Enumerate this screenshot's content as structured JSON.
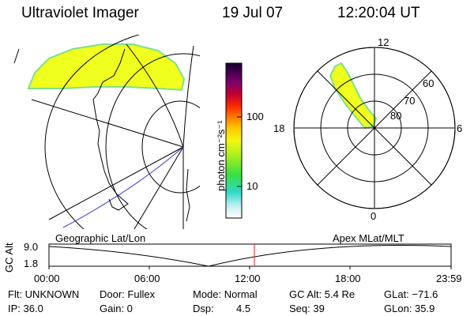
{
  "header": {
    "instrument": "Ultraviolet Imager",
    "date": "19 Jul 07",
    "time": "12:20:04 UT"
  },
  "colorbar": {
    "unit_label": "photon cm⁻²s⁻¹",
    "ticks": [
      "100",
      "10"
    ]
  },
  "geographic_panel": {
    "label": "Geographic Lat/Lon"
  },
  "polar_panel": {
    "label": "Apex MLat/MLT",
    "mlt_labels": {
      "top": "12",
      "left": "18",
      "right": "6",
      "bottom": "0"
    },
    "lat_labels": [
      "60",
      "70",
      "80"
    ]
  },
  "altitude_plot": {
    "axis_label": "GC Alt",
    "y_ticks": [
      "9.0",
      "1.8"
    ],
    "x_ticks": [
      "00:00",
      "06:00",
      "12:00",
      "18:00",
      "23:59"
    ],
    "current_time_marker": "12:20"
  },
  "status": {
    "flt": "Flt: UNKNOWN",
    "door": "Door: Fullex",
    "mode": "Mode: Normal",
    "gc_alt": "GC Alt: 5.4 Re",
    "glat": "GLat: −71.6",
    "ip": "IP: 36.0",
    "gain": "Gain:  0",
    "dsp_label": "Dsp:",
    "dsp_value": "4.5",
    "seq": "Seq: 39",
    "glon": "GLon:  35.9"
  },
  "colors": {
    "aurora_fill": "#f0ff1e",
    "aurora_edge": "#7fe08a",
    "orbit_track": "#3a3ad0",
    "time_marker": "#e02020"
  }
}
